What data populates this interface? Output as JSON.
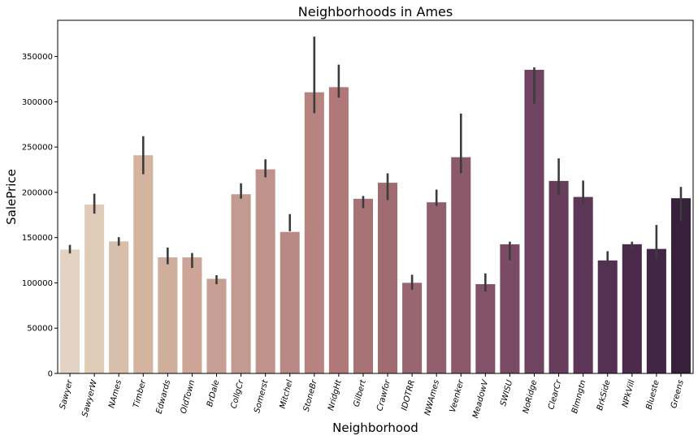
{
  "chart_data": {
    "type": "bar",
    "title": "Neighborhoods in Ames",
    "xlabel": "Neighborhood",
    "ylabel": "SalePrice",
    "ylim": [
      0,
      390000
    ],
    "yticks": [
      0,
      50000,
      100000,
      150000,
      200000,
      250000,
      300000,
      350000
    ],
    "ytick_labels": [
      "0",
      "50000",
      "100000",
      "150000",
      "200000",
      "250000",
      "300000",
      "350000"
    ],
    "grid": false,
    "categories": [
      "Sawyer",
      "SawyerW",
      "NAmes",
      "Timber",
      "Edwards",
      "OldTown",
      "BrDale",
      "CollgCr",
      "Somerst",
      "Mitchel",
      "StoneBr",
      "NridgHt",
      "Gilbert",
      "Crawfor",
      "IDOTRR",
      "NWAmes",
      "Veenker",
      "MeadowV",
      "SWISU",
      "NoRidge",
      "ClearCr",
      "Blmngtn",
      "BrkSide",
      "NPkVill",
      "Blueste",
      "Greens"
    ],
    "values": [
      136800,
      186500,
      145800,
      241000,
      128200,
      128200,
      104500,
      197900,
      225400,
      156300,
      310500,
      316200,
      192900,
      210600,
      100100,
      189000,
      238800,
      98600,
      142600,
      335300,
      212600,
      194900,
      124800,
      142700,
      137500,
      193500
    ],
    "error_low": [
      132500,
      176500,
      141000,
      220000,
      120500,
      116500,
      98500,
      193000,
      216500,
      157000,
      287500,
      304500,
      182500,
      191500,
      92500,
      185000,
      221000,
      90500,
      125000,
      298000,
      197000,
      187000,
      119000,
      136000,
      127000,
      168000
    ],
    "error_high": [
      142000,
      198500,
      150500,
      262000,
      139000,
      133000,
      108500,
      210000,
      236500,
      176000,
      372000,
      341000,
      196000,
      221000,
      109000,
      203000,
      287000,
      110500,
      145500,
      338000,
      237500,
      213000,
      135000,
      145500,
      164000,
      206000
    ],
    "colors": [
      "#e2d3c4",
      "#dfcbb8",
      "#d8bfac",
      "#d4b49e",
      "#cfae9b",
      "#cca598",
      "#c89f94",
      "#c39a8f",
      "#bf928b",
      "#bb8985",
      "#b6837f",
      "#b07878",
      "#a87375",
      "#a06c72",
      "#996570",
      "#915f6d",
      "#8b596a",
      "#82516a",
      "#7b4b66",
      "#704361",
      "#673d5c",
      "#5e3658",
      "#543052",
      "#4b2a4c",
      "#412645",
      "#36203a"
    ],
    "error_color": "#3c3c3c"
  }
}
